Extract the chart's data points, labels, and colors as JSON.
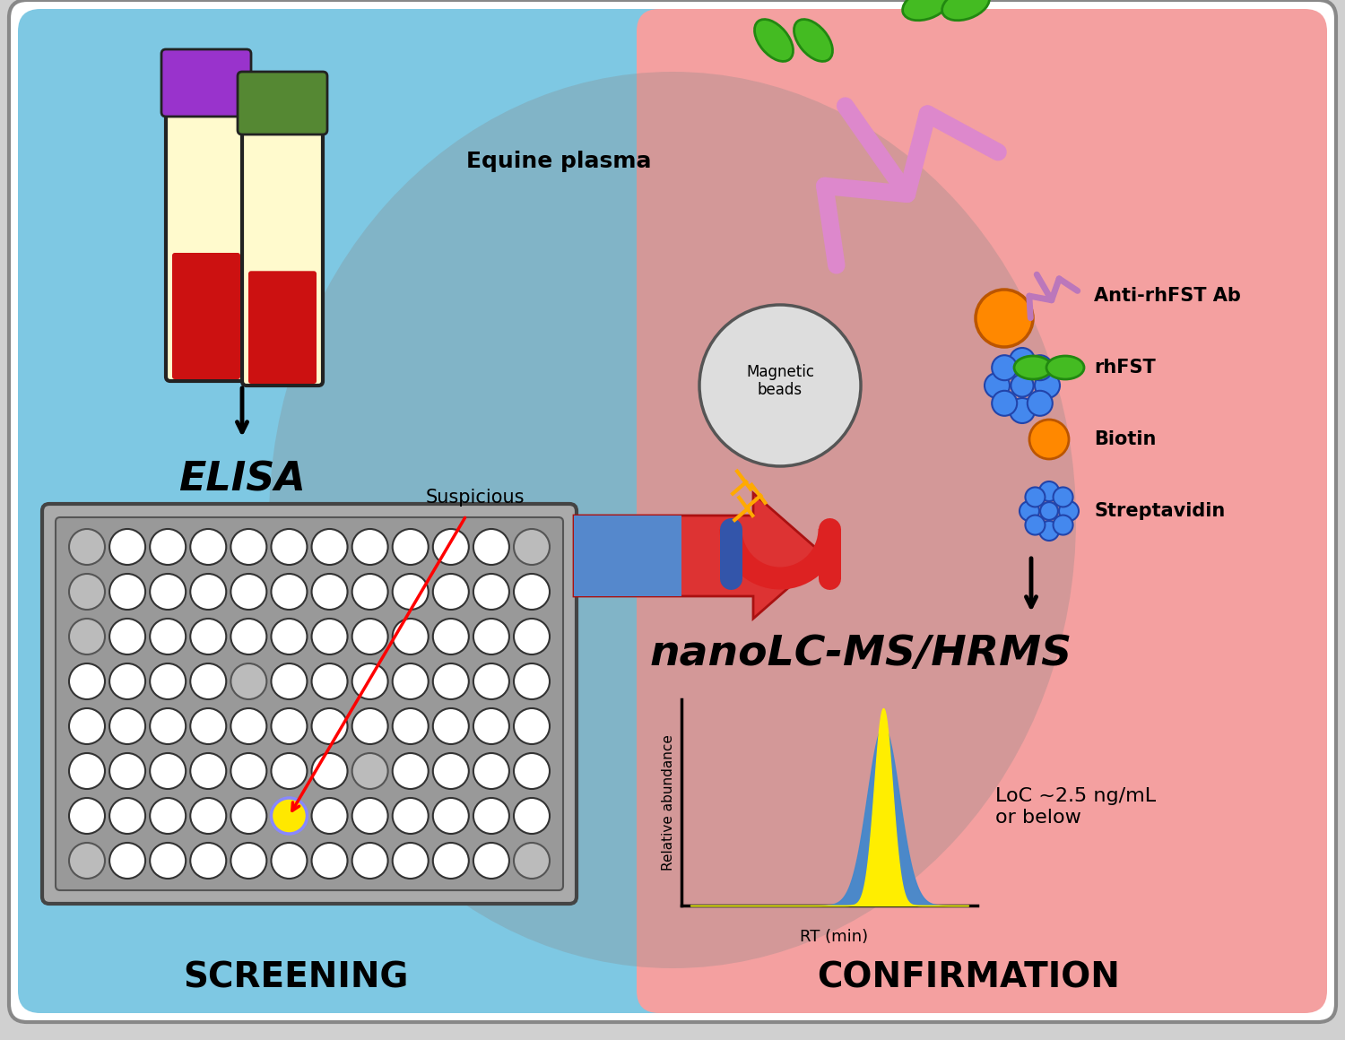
{
  "background_color": "#d0d0d0",
  "left_bg_color": "#7EC8E3",
  "right_bg_color": "#F4A0A0",
  "screening_label": "SCREENING",
  "confirmation_label": "CONFIRMATION",
  "elisa_label": "ELISA",
  "nano_label": "nanoLC-MS/HRMS",
  "equine_plasma_label": "Equine plasma",
  "suspicious_label": "Suspicious",
  "magnetic_beads_label": "Magnetic\nbeads",
  "loc_label": "LoC ~2.5 ng/mL\nor below",
  "rt_label": "RT (min)",
  "rel_abund_label": "Relative abundance",
  "legend_items": [
    "Anti-rhFST Ab",
    "rhFST",
    "Biotin",
    "Streptavidin"
  ],
  "plate_rows": 8,
  "plate_cols": 12,
  "yellow_well_row": 6,
  "yellow_well_col": 5
}
